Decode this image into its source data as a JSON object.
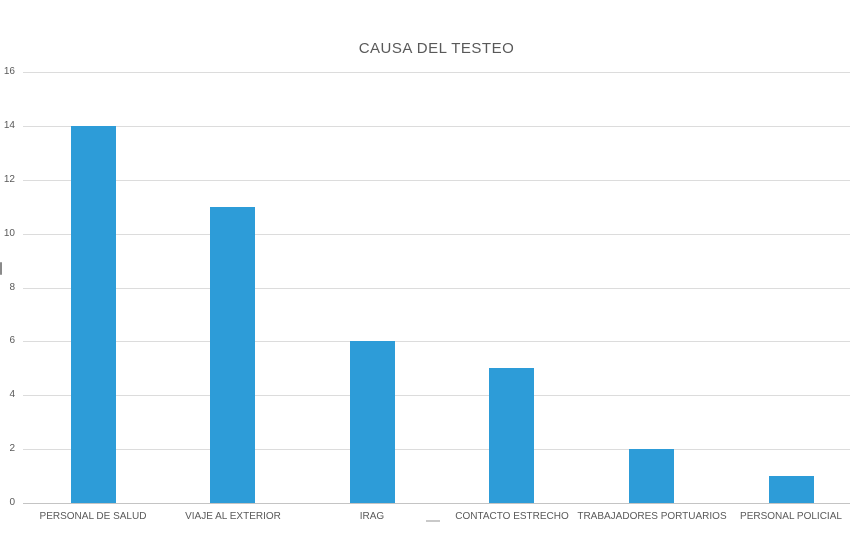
{
  "chart_data": {
    "type": "bar",
    "title": "CAUSA DEL TESTEO",
    "categories": [
      "PERSONAL DE SALUD",
      "VIAJE AL EXTERIOR",
      "IRAG",
      "CONTACTO ESTRECHO",
      "TRABAJADORES PORTUARIOS",
      "PERSONAL POLICIAL"
    ],
    "values": [
      14,
      11,
      6,
      5,
      2,
      1
    ],
    "xlabel": "",
    "ylabel": "",
    "ylim": [
      0,
      16
    ],
    "yticks": [
      0,
      2,
      4,
      6,
      8,
      10,
      12,
      14,
      16
    ],
    "grid": true,
    "legend": false,
    "colors": {
      "bar": "#2d9cd8",
      "gridline": "#dcdcdc",
      "axis_line": "#c4c4c4",
      "text": "#595959",
      "background": "#ffffff"
    }
  }
}
